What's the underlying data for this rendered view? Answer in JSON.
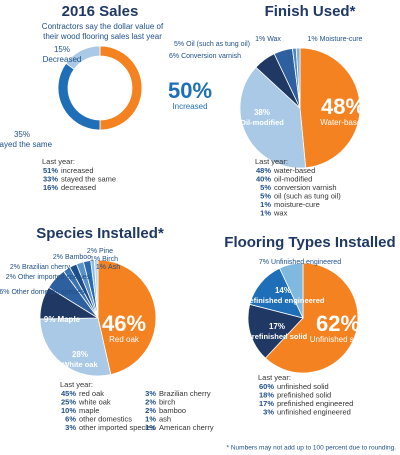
{
  "chart_data": [
    {
      "type": "donut",
      "title": "2016 Sales",
      "subtitle": "Contractors say the dollar value of their wood flooring sales last year ...",
      "categories": [
        "Increased",
        "Stayed the same",
        "Decreased"
      ],
      "values": [
        50,
        35,
        15
      ],
      "value_labels": [
        "50%",
        "35%",
        "15%"
      ],
      "colors": [
        "#f58220",
        "#1f6fb8",
        "#a9c9e6"
      ],
      "last_year": {
        "label": "Last year:",
        "categories": [
          "increased",
          "stayed the same",
          "decreased"
        ],
        "values": [
          51,
          33,
          16
        ],
        "value_labels": [
          "51%",
          "33%",
          "16%"
        ]
      }
    },
    {
      "type": "pie",
      "title": "Finish Used*",
      "categories": [
        "Water-based",
        "Oil-modified",
        "Conversion varnish",
        "Oil (such as tung oil)",
        "Wax",
        "Moisture-cure"
      ],
      "values": [
        48,
        38,
        6,
        5,
        1,
        1
      ],
      "value_labels": [
        "48%",
        "38%",
        "6%",
        "5%",
        "1%",
        "1%"
      ],
      "colors": [
        "#f58220",
        "#a9c9e6",
        "#1f3864",
        "#2e5f9e",
        "#4f87c4",
        "#7fb2df"
      ],
      "last_year": {
        "label": "Last year:",
        "categories": [
          "water-based",
          "oil-modified",
          "conversion varnish",
          "oil (such as tung oil)",
          "moisture-cure",
          "wax"
        ],
        "values": [
          48,
          40,
          5,
          5,
          1,
          1
        ],
        "value_labels": [
          "48%",
          "40%",
          "5%",
          "5%",
          "1%",
          "1%"
        ]
      }
    },
    {
      "type": "pie",
      "title": "Species Installed*",
      "categories": [
        "Red oak",
        "White oak",
        "Maple",
        "Other domestic species",
        "Other imported species",
        "Brazilian cherry",
        "Bamboo",
        "Pine",
        "Birch",
        "Ash"
      ],
      "values": [
        46,
        28,
        9,
        6,
        2,
        2,
        2,
        2,
        1,
        1
      ],
      "value_labels": [
        "46%",
        "28%",
        "9%",
        "6%",
        "2%",
        "2%",
        "2%",
        "2%",
        "1%",
        "1%"
      ],
      "colors": [
        "#f58220",
        "#a9c9e6",
        "#1f3864",
        "#2e5f9e",
        "#3b74b5",
        "#1d4e89",
        "#5a93cc",
        "#2a6aad",
        "#8dbde6",
        "#b7d7ef"
      ],
      "last_year": {
        "label": "Last year:",
        "categories": [
          "red oak",
          "white oak",
          "maple",
          "other domestics",
          "other imported species",
          "Brazilian cherry",
          "birch",
          "bamboo",
          "ash",
          "American cherry"
        ],
        "values": [
          45,
          25,
          10,
          6,
          3,
          3,
          2,
          2,
          1,
          1
        ],
        "value_labels": [
          "45%",
          "25%",
          "10%",
          "6%",
          "3%",
          "3%",
          "2%",
          "2%",
          "1%",
          "1%"
        ]
      }
    },
    {
      "type": "pie",
      "title": "Flooring Types Installed",
      "categories": [
        "Unfinished solid",
        "Prefinished solid",
        "Prefinished engineered",
        "Unfinished engineered"
      ],
      "values": [
        62,
        17,
        14,
        7
      ],
      "value_labels": [
        "62%",
        "17%",
        "14%",
        "7%"
      ],
      "colors": [
        "#f58220",
        "#1f3864",
        "#1f6fb8",
        "#7fb9e0"
      ],
      "last_year": {
        "label": "Last year:",
        "categories": [
          "unfinished solid",
          "prefinished solid",
          "prefinished engineered",
          "unfinished engineered"
        ],
        "values": [
          60,
          18,
          17,
          3
        ],
        "value_labels": [
          "60%",
          "18%",
          "17%",
          "3%"
        ]
      }
    }
  ],
  "footnote": "* Numbers may not add up to 100 percent due to rounding."
}
